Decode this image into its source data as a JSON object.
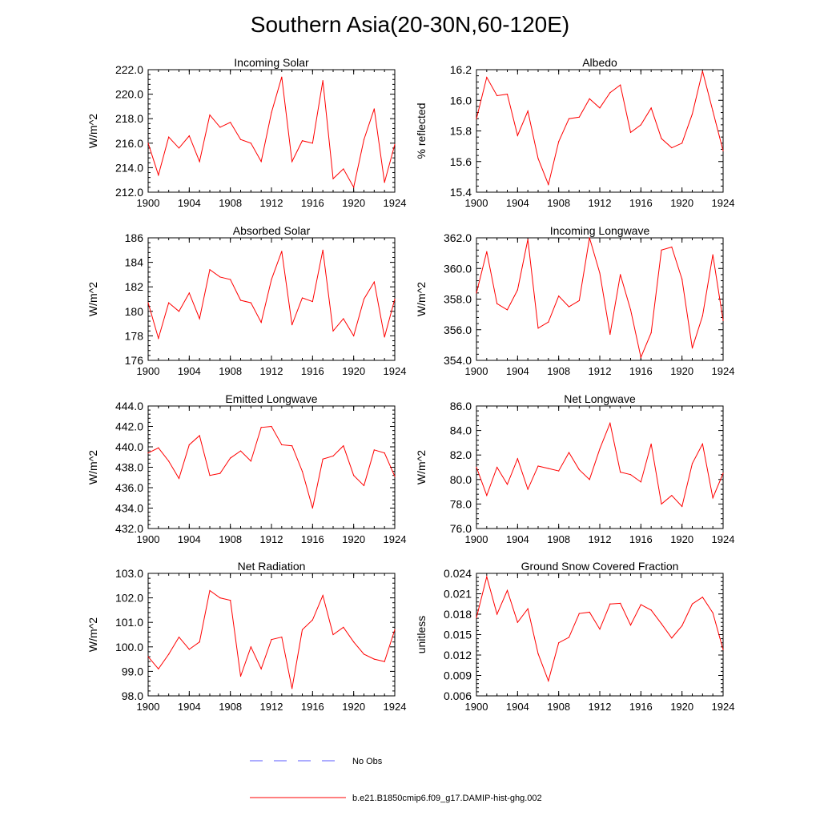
{
  "title": "Southern Asia(20-30N,60-120E)",
  "legend": {
    "obs_label": "No Obs",
    "obs_color": "#5a5aff",
    "model_label": "b.e21.B1850cmip6.f09_g17.DAMIP-hist-ghg.002",
    "model_color": "#ff0000"
  },
  "chart_data": [
    {
      "type": "line",
      "title": "Incoming Solar",
      "ylabel": "W/m^2",
      "xlim": [
        1900,
        1924
      ],
      "ylim": [
        212.0,
        222.0
      ],
      "xticks": [
        "1900",
        "1904",
        "1908",
        "1912",
        "1916",
        "1920",
        "1924"
      ],
      "yticks": [
        "212.0",
        "214.0",
        "216.0",
        "218.0",
        "220.0",
        "222.0"
      ],
      "x": [
        1900,
        1901,
        1902,
        1903,
        1904,
        1905,
        1906,
        1907,
        1908,
        1909,
        1910,
        1911,
        1912,
        1913,
        1914,
        1915,
        1916,
        1917,
        1918,
        1919,
        1920,
        1921,
        1922,
        1923,
        1924
      ],
      "series": [
        {
          "values": [
            216.0,
            213.4,
            216.5,
            215.6,
            216.6,
            214.5,
            218.3,
            217.3,
            217.7,
            216.3,
            216.0,
            214.5,
            218.5,
            221.4,
            214.5,
            216.2,
            216.0,
            221.1,
            213.1,
            213.9,
            212.4,
            216.3,
            218.8,
            212.8,
            215.9
          ]
        }
      ]
    },
    {
      "type": "line",
      "title": "Albedo",
      "ylabel": "% reflected",
      "xlim": [
        1900,
        1924
      ],
      "ylim": [
        15.4,
        16.2
      ],
      "xticks": [
        "1900",
        "1904",
        "1908",
        "1912",
        "1916",
        "1920",
        "1924"
      ],
      "yticks": [
        "15.4",
        "15.6",
        "15.8",
        "16.0",
        "16.2"
      ],
      "x": [
        1900,
        1901,
        1902,
        1903,
        1904,
        1905,
        1906,
        1907,
        1908,
        1909,
        1910,
        1911,
        1912,
        1913,
        1914,
        1915,
        1916,
        1917,
        1918,
        1919,
        1920,
        1921,
        1922,
        1923,
        1924
      ],
      "series": [
        {
          "values": [
            15.88,
            16.15,
            16.03,
            16.04,
            15.77,
            15.93,
            15.62,
            15.45,
            15.73,
            15.88,
            15.89,
            16.01,
            15.95,
            16.05,
            16.1,
            15.79,
            15.84,
            15.95,
            15.75,
            15.69,
            15.72,
            15.91,
            16.19,
            15.93,
            15.67
          ]
        }
      ]
    },
    {
      "type": "line",
      "title": "Absorbed Solar",
      "ylabel": "W/m^2",
      "xlim": [
        1900,
        1924
      ],
      "ylim": [
        176,
        186
      ],
      "xticks": [
        "1900",
        "1904",
        "1908",
        "1912",
        "1916",
        "1920",
        "1924"
      ],
      "yticks": [
        "176",
        "178",
        "180",
        "182",
        "184",
        "186"
      ],
      "x": [
        1900,
        1901,
        1902,
        1903,
        1904,
        1905,
        1906,
        1907,
        1908,
        1909,
        1910,
        1911,
        1912,
        1913,
        1914,
        1915,
        1916,
        1917,
        1918,
        1919,
        1920,
        1921,
        1922,
        1923,
        1924
      ],
      "series": [
        {
          "values": [
            180.7,
            177.8,
            180.7,
            180.0,
            181.5,
            179.4,
            183.4,
            182.8,
            182.6,
            180.9,
            180.7,
            179.1,
            182.6,
            184.9,
            178.9,
            181.1,
            180.8,
            185.0,
            178.4,
            179.4,
            178.0,
            181.0,
            182.4,
            177.9,
            181.0
          ]
        }
      ]
    },
    {
      "type": "line",
      "title": "Incoming Longwave",
      "ylabel": "W/m^2",
      "xlim": [
        1900,
        1924
      ],
      "ylim": [
        354.0,
        362.0
      ],
      "xticks": [
        "1900",
        "1904",
        "1908",
        "1912",
        "1916",
        "1920",
        "1924"
      ],
      "yticks": [
        "354.0",
        "356.0",
        "358.0",
        "360.0",
        "362.0"
      ],
      "x": [
        1900,
        1901,
        1902,
        1903,
        1904,
        1905,
        1906,
        1907,
        1908,
        1909,
        1910,
        1911,
        1912,
        1913,
        1914,
        1915,
        1916,
        1917,
        1918,
        1919,
        1920,
        1921,
        1922,
        1923,
        1924
      ],
      "series": [
        {
          "values": [
            358.4,
            361.1,
            357.7,
            357.3,
            358.6,
            361.9,
            356.1,
            356.5,
            358.2,
            357.5,
            357.9,
            362.0,
            359.7,
            355.7,
            359.6,
            357.3,
            354.2,
            355.8,
            361.2,
            361.4,
            359.3,
            354.8,
            356.9,
            360.9,
            356.6
          ]
        }
      ]
    },
    {
      "type": "line",
      "title": "Emitted Longwave",
      "ylabel": "W/m^2",
      "xlim": [
        1900,
        1924
      ],
      "ylim": [
        432.0,
        444.0
      ],
      "xticks": [
        "1900",
        "1904",
        "1908",
        "1912",
        "1916",
        "1920",
        "1924"
      ],
      "yticks": [
        "432.0",
        "434.0",
        "436.0",
        "438.0",
        "440.0",
        "442.0",
        "444.0"
      ],
      "x": [
        1900,
        1901,
        1902,
        1903,
        1904,
        1905,
        1906,
        1907,
        1908,
        1909,
        1910,
        1911,
        1912,
        1913,
        1914,
        1915,
        1916,
        1917,
        1918,
        1919,
        1920,
        1921,
        1922,
        1923,
        1924
      ],
      "series": [
        {
          "values": [
            439.4,
            439.9,
            438.6,
            436.9,
            440.2,
            441.1,
            437.2,
            437.4,
            438.9,
            439.6,
            438.6,
            441.9,
            442.0,
            440.2,
            440.1,
            437.6,
            434.0,
            438.8,
            439.1,
            440.1,
            437.2,
            436.2,
            439.7,
            439.4,
            437.1
          ]
        }
      ]
    },
    {
      "type": "line",
      "title": "Net Longwave",
      "ylabel": "W/m^2",
      "xlim": [
        1900,
        1924
      ],
      "ylim": [
        76.0,
        86.0
      ],
      "xticks": [
        "1900",
        "1904",
        "1908",
        "1912",
        "1916",
        "1920",
        "1924"
      ],
      "yticks": [
        "76.0",
        "78.0",
        "80.0",
        "82.0",
        "84.0",
        "86.0"
      ],
      "x": [
        1900,
        1901,
        1902,
        1903,
        1904,
        1905,
        1906,
        1907,
        1908,
        1909,
        1910,
        1911,
        1912,
        1913,
        1914,
        1915,
        1916,
        1917,
        1918,
        1919,
        1920,
        1921,
        1922,
        1923,
        1924
      ],
      "series": [
        {
          "values": [
            81.0,
            78.7,
            81.0,
            79.6,
            81.7,
            79.2,
            81.1,
            80.9,
            80.7,
            82.2,
            80.8,
            80.0,
            82.5,
            84.6,
            80.6,
            80.4,
            79.8,
            82.9,
            78.0,
            78.7,
            77.8,
            81.3,
            82.9,
            78.5,
            80.5
          ]
        }
      ]
    },
    {
      "type": "line",
      "title": "Net Radiation",
      "ylabel": "W/m^2",
      "xlim": [
        1900,
        1924
      ],
      "ylim": [
        98.0,
        103.0
      ],
      "xticks": [
        "1900",
        "1904",
        "1908",
        "1912",
        "1916",
        "1920",
        "1924"
      ],
      "yticks": [
        "98.0",
        "99.0",
        "100.0",
        "101.0",
        "102.0",
        "103.0"
      ],
      "x": [
        1900,
        1901,
        1902,
        1903,
        1904,
        1905,
        1906,
        1907,
        1908,
        1909,
        1910,
        1911,
        1912,
        1913,
        1914,
        1915,
        1916,
        1917,
        1918,
        1919,
        1920,
        1921,
        1922,
        1923,
        1924
      ],
      "series": [
        {
          "values": [
            99.6,
            99.1,
            99.7,
            100.4,
            99.9,
            100.2,
            102.3,
            102.0,
            101.9,
            98.8,
            100.0,
            99.1,
            100.3,
            100.4,
            98.3,
            100.7,
            101.1,
            102.1,
            100.5,
            100.8,
            100.2,
            99.7,
            99.5,
            99.4,
            100.7
          ]
        }
      ]
    },
    {
      "type": "line",
      "title": "Ground Snow Covered Fraction",
      "ylabel": "unitless",
      "xlim": [
        1900,
        1924
      ],
      "ylim": [
        0.006,
        0.024
      ],
      "xticks": [
        "1900",
        "1904",
        "1908",
        "1912",
        "1916",
        "1920",
        "1924"
      ],
      "yticks": [
        "0.006",
        "0.009",
        "0.012",
        "0.015",
        "0.018",
        "0.021",
        "0.024"
      ],
      "x": [
        1900,
        1901,
        1902,
        1903,
        1904,
        1905,
        1906,
        1907,
        1908,
        1909,
        1910,
        1911,
        1912,
        1913,
        1914,
        1915,
        1916,
        1917,
        1918,
        1919,
        1920,
        1921,
        1922,
        1923,
        1924
      ],
      "series": [
        {
          "values": [
            0.0175,
            0.0235,
            0.018,
            0.0215,
            0.0168,
            0.0188,
            0.0122,
            0.0082,
            0.0138,
            0.0146,
            0.0181,
            0.0183,
            0.0158,
            0.0195,
            0.0196,
            0.0164,
            0.0194,
            0.0186,
            0.0166,
            0.0145,
            0.0163,
            0.0195,
            0.0205,
            0.0182,
            0.0128
          ]
        }
      ]
    }
  ]
}
